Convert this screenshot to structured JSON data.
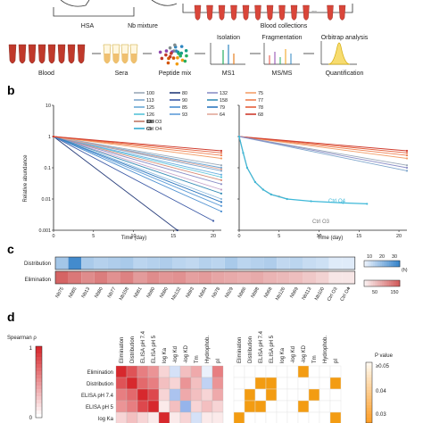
{
  "panel_a": {
    "top_labels": [
      "HSA",
      "Nb mixture",
      "Blood collections"
    ],
    "ellipsis": "...",
    "workflow_steps": [
      "Blood",
      "Sera",
      "Peptide mix",
      "Isolation",
      "MS1",
      "Fragmentation",
      "MS/MS",
      "Orbitrap analysis",
      "Quantification"
    ]
  },
  "panel_labels": [
    "b",
    "c",
    "d"
  ],
  "panel_b": {
    "ylabel": "Relative abundance",
    "xlabel": "Time (day)",
    "ctrl_labels": [
      "Ctrl O3",
      "Ctrl O4"
    ],
    "legend_entries": [
      {
        "name": "100",
        "color": "#9ba9b8"
      },
      {
        "name": "80",
        "color": "#263c7a"
      },
      {
        "name": "132",
        "color": "#8c8fc7"
      },
      {
        "name": "75",
        "color": "#f3a06b"
      },
      {
        "name": "113",
        "color": "#7fa6cc"
      },
      {
        "name": "90",
        "color": "#3c5aa6"
      },
      {
        "name": "158",
        "color": "#3a8fb7"
      },
      {
        "name": "77",
        "color": "#ef7f4f"
      },
      {
        "name": "125",
        "color": "#6aa8d6"
      },
      {
        "name": "85",
        "color": "#4a8ed0"
      },
      {
        "name": "79",
        "color": "#2f78bf"
      },
      {
        "name": "78",
        "color": "#e55f3b"
      },
      {
        "name": "126",
        "color": "#57c3d9"
      },
      {
        "name": "93",
        "color": "#5f9dd8"
      },
      {
        "name": "64",
        "color": "#e2a89a"
      },
      {
        "name": "68",
        "color": "#cf3b2d"
      },
      {
        "name": "129",
        "color": "#6cb0e0"
      },
      {
        "name": "98",
        "color": "#8db9de"
      },
      {
        "name": "Ctrl O3",
        "color": "#a3a3a3"
      },
      {
        "name": "13",
        "color": "#d88c76"
      },
      {
        "name": "69",
        "color": "#c5a2c9"
      },
      {
        "name": "Ctrl O4",
        "color": "#3db8d8"
      }
    ]
  },
  "chart_data": [
    {
      "type": "line",
      "title": "",
      "xlabel": "Time (day)",
      "ylabel": "Relative abundance",
      "y_scale": "log",
      "xlim": [
        0,
        21
      ],
      "ylim": [
        0.001,
        10
      ],
      "x_ticks": [
        "0",
        "5",
        "10",
        "15",
        "20"
      ],
      "y_ticks": [
        "0.001",
        "0.01",
        "0.1",
        "1",
        "10"
      ],
      "series": [
        {
          "name": "100",
          "x": [
            0,
            21
          ],
          "y": [
            1,
            0.12
          ]
        },
        {
          "name": "113",
          "x": [
            0,
            21
          ],
          "y": [
            1,
            0.08
          ]
        },
        {
          "name": "125",
          "x": [
            0,
            21
          ],
          "y": [
            1,
            0.1
          ]
        },
        {
          "name": "126",
          "x": [
            0,
            21
          ],
          "y": [
            1,
            0.05
          ]
        },
        {
          "name": "129",
          "x": [
            0,
            21
          ],
          "y": [
            1,
            0.06
          ]
        },
        {
          "name": "13",
          "x": [
            0,
            21
          ],
          "y": [
            1,
            0.04
          ]
        },
        {
          "name": "80",
          "x": [
            0,
            15.5
          ],
          "y": [
            1,
            0.001
          ]
        },
        {
          "name": "90",
          "x": [
            0,
            20
          ],
          "y": [
            1,
            0.002
          ]
        },
        {
          "name": "85",
          "x": [
            0,
            21
          ],
          "y": [
            1,
            0.004
          ]
        },
        {
          "name": "93",
          "x": [
            0,
            21
          ],
          "y": [
            1,
            0.006
          ]
        },
        {
          "name": "98",
          "x": [
            0,
            21
          ],
          "y": [
            1,
            0.01
          ]
        },
        {
          "name": "69",
          "x": [
            0,
            21
          ],
          "y": [
            1,
            0.02
          ]
        },
        {
          "name": "132",
          "x": [
            0,
            21
          ],
          "y": [
            1,
            0.03
          ]
        },
        {
          "name": "158",
          "x": [
            0,
            21
          ],
          "y": [
            1,
            0.015
          ]
        },
        {
          "name": "79",
          "x": [
            0,
            21
          ],
          "y": [
            1,
            0.008
          ]
        },
        {
          "name": "64",
          "x": [
            0,
            21
          ],
          "y": [
            1,
            0.09
          ]
        },
        {
          "name": "75",
          "x": [
            0,
            21
          ],
          "y": [
            1,
            0.2
          ]
        },
        {
          "name": "77",
          "x": [
            0,
            21
          ],
          "y": [
            1,
            0.25
          ]
        },
        {
          "name": "78",
          "x": [
            0,
            21
          ],
          "y": [
            1,
            0.3
          ]
        },
        {
          "name": "68",
          "x": [
            0,
            21
          ],
          "y": [
            1,
            0.35
          ]
        }
      ]
    },
    {
      "type": "line",
      "title": "",
      "xlabel": "Time (day)",
      "y_scale": "log",
      "xlim": [
        0,
        21
      ],
      "ylim": [
        0.001,
        10
      ],
      "x_ticks": [
        "0",
        "5",
        "10",
        "15",
        "20"
      ],
      "y_ticks": [
        "0.001",
        "0.01",
        "0.1",
        "1",
        "10"
      ],
      "series": [
        {
          "name": "75",
          "x": [
            0,
            21
          ],
          "y": [
            1,
            0.2
          ]
        },
        {
          "name": "77",
          "x": [
            0,
            21
          ],
          "y": [
            1,
            0.25
          ]
        },
        {
          "name": "78",
          "x": [
            0,
            21
          ],
          "y": [
            1,
            0.3
          ]
        },
        {
          "name": "68",
          "x": [
            0,
            21
          ],
          "y": [
            1,
            0.35
          ]
        },
        {
          "name": "100",
          "x": [
            0,
            21
          ],
          "y": [
            1,
            0.12
          ]
        },
        {
          "name": "113",
          "x": [
            0,
            21
          ],
          "y": [
            1,
            0.08
          ]
        },
        {
          "name": "132",
          "x": [
            0,
            21
          ],
          "y": [
            1,
            0.1
          ]
        },
        {
          "name": "Ctrl O3",
          "x": [
            0,
            0.5,
            1,
            2,
            3,
            4,
            5,
            6
          ],
          "y": [
            1,
            0.3,
            0.1,
            0.035,
            0.02,
            0.014,
            0.012,
            0.01
          ]
        },
        {
          "name": "Ctrl O4",
          "x": [
            0,
            0.5,
            1,
            2,
            3,
            4,
            6,
            9,
            13,
            16
          ],
          "y": [
            1,
            0.3,
            0.1,
            0.035,
            0.02,
            0.014,
            0.01,
            0.0085,
            0.0075,
            0.007
          ]
        }
      ]
    },
    {
      "type": "heatmap",
      "title": "",
      "rows": [
        "Distribution",
        "Elimination"
      ],
      "columns": [
        "Nb75",
        "Nb85",
        "Nb13",
        "Nb80",
        "Nb77",
        "Nb158",
        "Nb81",
        "Nb90",
        "Nb80",
        "Nb132",
        "Nb93",
        "Nb64",
        "Nb78",
        "Nb29",
        "Nb86",
        "Nb98",
        "Nb68",
        "Nb126",
        "Nb69",
        "Nb113",
        "Nb100",
        "Ctrl O3",
        "Ctrl O4"
      ],
      "values": [
        [
          12,
          28,
          11,
          9,
          10,
          11,
          8,
          9,
          10,
          8,
          7,
          9,
          8,
          11,
          8,
          9,
          10,
          7,
          8,
          6,
          5,
          2,
          2
        ],
        [
          140,
          120,
          100,
          115,
          95,
          110,
          85,
          100,
          90,
          95,
          80,
          85,
          75,
          70,
          65,
          70,
          60,
          55,
          50,
          40,
          30,
          10,
          10
        ]
      ],
      "colorbars": [
        {
          "label": "Distribution",
          "ticks": [
            "10",
            "20",
            "30"
          ],
          "unit": "(h)"
        },
        {
          "label": "Elimination",
          "ticks": [
            "50",
            "150"
          ],
          "unit": ""
        }
      ],
      "marked_column": "* Nb126",
      "star_mark": "*"
    },
    {
      "type": "heatmap",
      "title": "Spearman ρ",
      "rows": [
        "Elimination",
        "Distribution",
        "ELISA pH 7.4",
        "ELISA pH 5",
        "log Ka"
      ],
      "columns": [
        "Elimination",
        "Distribution",
        "ELISA pH 7.4",
        "ELISA pH 5",
        "log Ka",
        "-log Kd",
        "-log KD",
        "Tm",
        "Hydrophob.",
        "pI"
      ],
      "scale_ticks": [
        "1",
        "0"
      ],
      "values": [
        [
          1,
          0.8,
          0.6,
          0.5,
          0.2,
          -0.2,
          0.3,
          0.4,
          -0.1,
          0.6
        ],
        [
          0.8,
          1,
          0.7,
          0.6,
          0.3,
          0.2,
          0.5,
          0.3,
          -0.3,
          0.5
        ],
        [
          0.6,
          0.7,
          1,
          0.85,
          0.2,
          -0.4,
          0.4,
          0.3,
          0.2,
          0.4
        ],
        [
          0.5,
          0.6,
          0.85,
          1,
          0.1,
          0.3,
          -0.5,
          0.2,
          0.3,
          0.2
        ],
        [
          0.2,
          0.3,
          0.2,
          0.1,
          1,
          0.1,
          0.2,
          -0.2,
          0.1,
          0.1
        ]
      ]
    },
    {
      "type": "heatmap",
      "title": "P value",
      "rows": [
        "Elimination",
        "Distribution",
        "ELISA pH 7.4",
        "ELISA pH 5",
        "log Ka"
      ],
      "columns": [
        "Elimination",
        "Distribution",
        "ELISA pH 7.4",
        "ELISA pH 5",
        "log Ka",
        "-log Kd",
        "-log KD",
        "Tm",
        "Hydrophob.",
        "pI"
      ],
      "scale_ticks": [
        "≥0.05",
        "0.04",
        "0.03"
      ],
      "significant_cells": [
        [
          0,
          6
        ],
        [
          1,
          2
        ],
        [
          1,
          3
        ],
        [
          1,
          9
        ],
        [
          2,
          1
        ],
        [
          2,
          3
        ],
        [
          2,
          7
        ],
        [
          3,
          1
        ],
        [
          3,
          2
        ],
        [
          3,
          6
        ],
        [
          4,
          0
        ],
        [
          4,
          9
        ]
      ]
    }
  ],
  "colors": {
    "blood": "#c0392b",
    "sera": "#f0c070",
    "accent_blue": "#3d85c6",
    "accent_red": "#d9534f",
    "tube_red": "#d9463a",
    "orange": "#f39c12"
  }
}
